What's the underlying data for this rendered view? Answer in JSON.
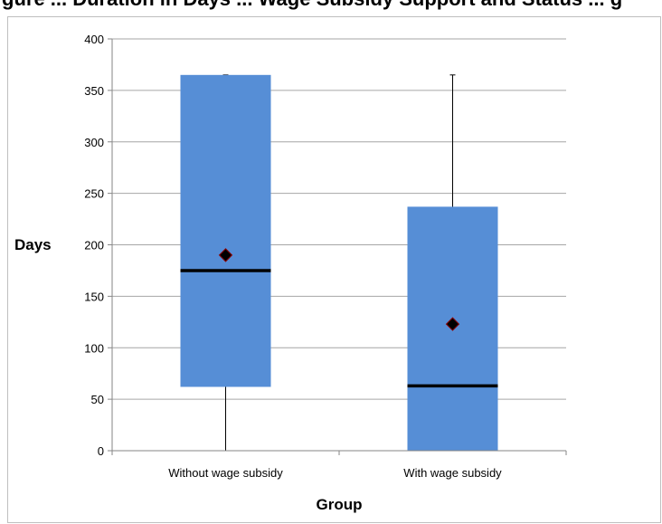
{
  "chart_data": {
    "type": "boxplot",
    "title": "Figure ... days ... wage subsidy ... supported ... g",
    "title_visible": "gure ... Duration in Days ... Wage Subsidy Support and Status ... g",
    "xlabel": "Group",
    "ylabel": "Days",
    "ylim": [
      0,
      400
    ],
    "yticks": [
      0,
      50,
      100,
      150,
      200,
      250,
      300,
      350,
      400
    ],
    "grid": true,
    "legend": "none",
    "colors": {
      "box": "#568ed6",
      "median": "#000000",
      "mean_marker": "#000000",
      "mean_marker_outline": "#8b0000",
      "gridline": "#a6a6a6",
      "frame": "#bfbfbf"
    },
    "categories": [
      "Without wage subsidy",
      "With wage subsidy"
    ],
    "boxes": [
      {
        "category": "Without wage subsidy",
        "min": 0,
        "q1": 62,
        "median": 175,
        "mean": 190,
        "q3": 365,
        "max": 365
      },
      {
        "category": "With wage subsidy",
        "min": 0,
        "q1": 0,
        "median": 63,
        "mean": 123,
        "q3": 237,
        "max": 365
      }
    ]
  }
}
